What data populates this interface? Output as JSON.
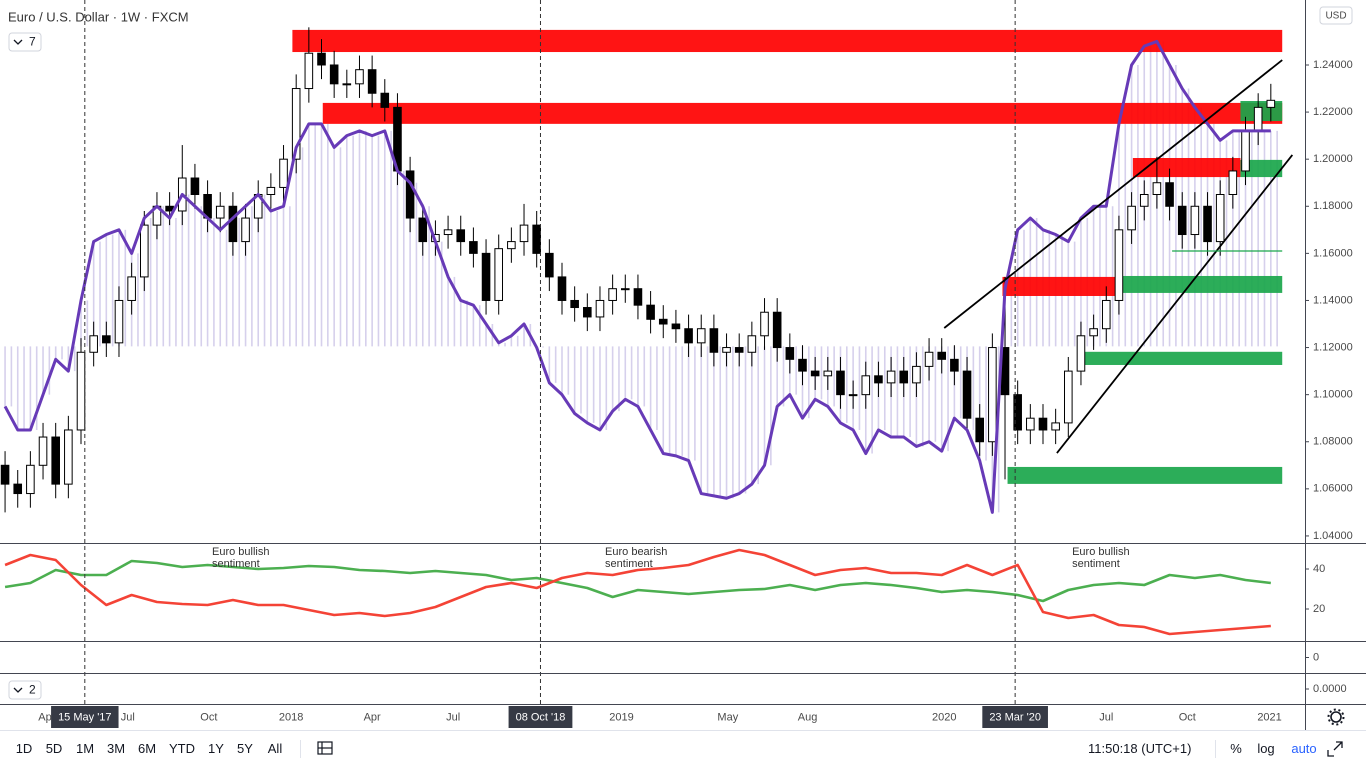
{
  "title": "Euro / U.S. Dollar · 1W · FXCM",
  "currency_button": "USD",
  "collapse_buttons": [
    "7",
    "2"
  ],
  "toolbar": {
    "ranges": [
      "1D",
      "5D",
      "1M",
      "3M",
      "6M",
      "YTD",
      "1Y",
      "5Y",
      "All"
    ],
    "clock": "11:50:18 (UTC+1)",
    "options": [
      "%",
      "log",
      "auto"
    ]
  },
  "chart_data": {
    "type": "candlestick",
    "xlim": [
      -0.4,
      102.7
    ],
    "xticks": [
      {
        "value": 3.3,
        "label": "Apr"
      },
      {
        "value": 9.7,
        "label": "Jul"
      },
      {
        "value": 16.1,
        "label": "Oct"
      },
      {
        "value": 22.6,
        "label": "2018"
      },
      {
        "value": 29,
        "label": "Apr"
      },
      {
        "value": 35.4,
        "label": "Jul"
      },
      {
        "value": 48.7,
        "label": "2019"
      },
      {
        "value": 57.1,
        "label": "May"
      },
      {
        "value": 63.4,
        "label": "Aug"
      },
      {
        "value": 74.2,
        "label": "2020"
      },
      {
        "value": 87,
        "label": "Jul"
      },
      {
        "value": 93.4,
        "label": "Oct"
      },
      {
        "value": 99.9,
        "label": "2021"
      }
    ],
    "markers": [
      {
        "value": 6.3,
        "label": "15 May '17"
      },
      {
        "value": 42.3,
        "label": "08 Oct '18"
      },
      {
        "value": 79.8,
        "label": "23 Mar '20"
      }
    ],
    "ylim": [
      1.037,
      1.2676
    ],
    "yticks": [
      {
        "value": 1.04,
        "label": "1.04000"
      },
      {
        "value": 1.06,
        "label": "1.06000"
      },
      {
        "value": 1.08,
        "label": "1.08000"
      },
      {
        "value": 1.1,
        "label": "1.10000"
      },
      {
        "value": 1.12,
        "label": "1.12000"
      },
      {
        "value": 1.14,
        "label": "1.14000"
      },
      {
        "value": 1.16,
        "label": "1.16000"
      },
      {
        "value": 1.18,
        "label": "1.18000"
      },
      {
        "value": 1.2,
        "label": "1.20000"
      },
      {
        "value": 1.22,
        "label": "1.22000"
      },
      {
        "value": 1.24,
        "label": "1.24000"
      }
    ],
    "up_color": "#ffffff",
    "down_color": "#000000",
    "open": [
      1.07,
      1.062,
      1.058,
      1.07,
      1.082,
      1.062,
      1.085,
      1.118,
      1.125,
      1.122,
      1.14,
      1.15,
      1.172,
      1.18,
      1.178,
      1.192,
      1.185,
      1.175,
      1.18,
      1.165,
      1.175,
      1.185,
      1.188,
      1.2,
      1.23,
      1.245,
      1.24,
      1.232,
      1.232,
      1.238,
      1.228,
      1.222,
      1.195,
      1.175,
      1.165,
      1.168,
      1.17,
      1.165,
      1.16,
      1.14,
      1.162,
      1.165,
      1.172,
      1.16,
      1.15,
      1.14,
      1.137,
      1.133,
      1.14,
      1.145,
      1.145,
      1.138,
      1.132,
      1.13,
      1.128,
      1.122,
      1.128,
      1.118,
      1.12,
      1.118,
      1.125,
      1.135,
      1.12,
      1.115,
      1.11,
      1.108,
      1.11,
      1.1,
      1.1,
      1.108,
      1.105,
      1.11,
      1.105,
      1.112,
      1.118,
      1.115,
      1.11,
      1.09,
      1.08,
      1.12,
      1.1,
      1.085,
      1.09,
      1.085,
      1.088,
      1.11,
      1.125,
      1.128,
      1.14,
      1.17,
      1.18,
      1.185,
      1.19,
      1.18,
      1.168,
      1.18,
      1.165,
      1.185,
      1.195,
      1.212,
      1.222
    ],
    "high": [
      1.076,
      1.068,
      1.076,
      1.088,
      1.088,
      1.091,
      1.124,
      1.131,
      1.131,
      1.146,
      1.156,
      1.178,
      1.186,
      1.186,
      1.206,
      1.198,
      1.191,
      1.186,
      1.186,
      1.181,
      1.191,
      1.194,
      1.206,
      1.236,
      1.256,
      1.251,
      1.246,
      1.238,
      1.244,
      1.244,
      1.234,
      1.228,
      1.201,
      1.181,
      1.174,
      1.176,
      1.176,
      1.171,
      1.166,
      1.168,
      1.171,
      1.181,
      1.178,
      1.166,
      1.156,
      1.146,
      1.143,
      1.146,
      1.151,
      1.151,
      1.151,
      1.144,
      1.138,
      1.136,
      1.134,
      1.134,
      1.134,
      1.126,
      1.126,
      1.131,
      1.141,
      1.141,
      1.126,
      1.121,
      1.116,
      1.116,
      1.116,
      1.106,
      1.114,
      1.114,
      1.116,
      1.116,
      1.118,
      1.124,
      1.124,
      1.121,
      1.116,
      1.096,
      1.126,
      1.15,
      1.106,
      1.096,
      1.096,
      1.094,
      1.116,
      1.131,
      1.134,
      1.146,
      1.176,
      1.186,
      1.191,
      1.201,
      1.196,
      1.186,
      1.186,
      1.186,
      1.191,
      1.201,
      1.218,
      1.228,
      1.232
    ],
    "low": [
      1.05,
      1.052,
      1.052,
      1.064,
      1.056,
      1.056,
      1.079,
      1.112,
      1.116,
      1.116,
      1.134,
      1.144,
      1.166,
      1.172,
      1.172,
      1.179,
      1.169,
      1.169,
      1.159,
      1.159,
      1.169,
      1.179,
      1.182,
      1.194,
      1.224,
      1.234,
      1.226,
      1.226,
      1.226,
      1.222,
      1.216,
      1.189,
      1.169,
      1.159,
      1.159,
      1.162,
      1.159,
      1.154,
      1.134,
      1.134,
      1.156,
      1.159,
      1.154,
      1.144,
      1.134,
      1.131,
      1.127,
      1.127,
      1.134,
      1.139,
      1.132,
      1.126,
      1.124,
      1.122,
      1.116,
      1.116,
      1.112,
      1.112,
      1.112,
      1.112,
      1.119,
      1.114,
      1.109,
      1.104,
      1.102,
      1.102,
      1.094,
      1.094,
      1.094,
      1.099,
      1.099,
      1.099,
      1.099,
      1.106,
      1.109,
      1.104,
      1.084,
      1.074,
      1.074,
      1.064,
      1.079,
      1.079,
      1.079,
      1.079,
      1.082,
      1.104,
      1.119,
      1.122,
      1.134,
      1.164,
      1.174,
      1.179,
      1.174,
      1.162,
      1.162,
      1.159,
      1.159,
      1.179,
      1.189,
      1.206,
      1.216
    ],
    "close": [
      1.062,
      1.058,
      1.07,
      1.082,
      1.062,
      1.085,
      1.118,
      1.125,
      1.122,
      1.14,
      1.15,
      1.172,
      1.18,
      1.178,
      1.192,
      1.185,
      1.175,
      1.18,
      1.165,
      1.175,
      1.185,
      1.188,
      1.2,
      1.23,
      1.245,
      1.24,
      1.232,
      1.232,
      1.238,
      1.228,
      1.222,
      1.195,
      1.175,
      1.165,
      1.168,
      1.17,
      1.165,
      1.16,
      1.14,
      1.162,
      1.165,
      1.172,
      1.16,
      1.15,
      1.14,
      1.137,
      1.133,
      1.14,
      1.145,
      1.145,
      1.138,
      1.132,
      1.13,
      1.128,
      1.122,
      1.128,
      1.118,
      1.12,
      1.118,
      1.125,
      1.135,
      1.12,
      1.115,
      1.11,
      1.108,
      1.11,
      1.1,
      1.1,
      1.108,
      1.105,
      1.11,
      1.105,
      1.112,
      1.118,
      1.115,
      1.11,
      1.09,
      1.08,
      1.12,
      1.1,
      1.085,
      1.09,
      1.085,
      1.088,
      1.11,
      1.125,
      1.128,
      1.14,
      1.17,
      1.18,
      1.185,
      1.19,
      1.18,
      1.168,
      1.18,
      1.165,
      1.185,
      1.195,
      1.212,
      1.222,
      1.225
    ],
    "overlay": {
      "color": "#673ab7",
      "fill_color": "#d6d0ec",
      "baseline": 1.1205,
      "values": [
        1.095,
        1.085,
        1.085,
        1.1,
        1.115,
        1.11,
        1.14,
        1.165,
        1.168,
        1.17,
        1.16,
        1.175,
        1.18,
        1.175,
        1.185,
        1.18,
        1.175,
        1.17,
        1.175,
        1.18,
        1.185,
        1.178,
        1.18,
        1.205,
        1.215,
        1.215,
        1.205,
        1.21,
        1.212,
        1.21,
        1.212,
        1.195,
        1.19,
        1.18,
        1.165,
        1.15,
        1.14,
        1.138,
        1.13,
        1.122,
        1.125,
        1.13,
        1.12,
        1.105,
        1.1,
        1.092,
        1.088,
        1.085,
        1.093,
        1.098,
        1.095,
        1.085,
        1.075,
        1.074,
        1.072,
        1.058,
        1.057,
        1.056,
        1.058,
        1.062,
        1.07,
        1.095,
        1.1,
        1.09,
        1.098,
        1.095,
        1.088,
        1.085,
        1.075,
        1.085,
        1.082,
        1.082,
        1.078,
        1.08,
        1.076,
        1.09,
        1.085,
        1.072,
        1.05,
        1.145,
        1.17,
        1.175,
        1.17,
        1.168,
        1.165,
        1.175,
        1.18,
        1.18,
        1.215,
        1.24,
        1.248,
        1.25,
        1.24,
        1.23,
        1.222,
        1.215,
        1.208,
        1.212,
        1.212,
        1.212,
        1.212
      ]
    },
    "zones": [
      {
        "color": "#ff0000",
        "range": [
          1.2455,
          1.2549
        ],
        "x": [
          22.7,
          100.9
        ]
      },
      {
        "color": "#ff0000",
        "range": [
          1.215,
          1.2239
        ],
        "x": [
          25.1,
          100.9
        ]
      },
      {
        "color": "#ff0000",
        "range": [
          1.1924,
          1.2005
        ],
        "x": [
          89.1,
          97.6
        ]
      },
      {
        "color": "#ff0000",
        "range": [
          1.1419,
          1.15
        ],
        "x": [
          78.8,
          87.9
        ]
      },
      {
        "color": "#1aa64b",
        "range": [
          1.2162,
          1.2247
        ],
        "x": [
          97.6,
          100.9
        ]
      },
      {
        "color": "#1aa64b",
        "range": [
          1.1924,
          1.1997
        ],
        "x": [
          97.6,
          100.9
        ]
      },
      {
        "color": "#1aa64b",
        "range": [
          1.1432,
          1.1504
        ],
        "x": [
          88.1,
          100.9
        ]
      },
      {
        "color": "#1aa64b",
        "range": [
          1.1126,
          1.1182
        ],
        "x": [
          85.3,
          100.9
        ]
      },
      {
        "color": "#1aa64b",
        "range": [
          1.0621,
          1.0693
        ],
        "x": [
          79.2,
          100.9
        ]
      }
    ],
    "lines": [
      {
        "color": "#000000",
        "x": [
          74.2,
          100.9
        ],
        "y": [
          1.1283,
          1.2421
        ]
      },
      {
        "color": "#000000",
        "x": [
          83.1,
          101.7
        ],
        "y": [
          1.0752,
          1.2018
        ]
      },
      {
        "color": "#1aa64b",
        "x": [
          92.2,
          100.9
        ],
        "y": [
          1.161,
          1.161
        ]
      }
    ],
    "sentiment": {
      "ylim": [
        4.5,
        52
      ],
      "yticks": [
        20,
        40
      ],
      "x": [
        0,
        2,
        4,
        6,
        8,
        10,
        12,
        14,
        16,
        18,
        20,
        22,
        24,
        26,
        28,
        30,
        32,
        34,
        36,
        38,
        40,
        42,
        44,
        46,
        48,
        50,
        52,
        54,
        56,
        58,
        60,
        62,
        64,
        66,
        68,
        70,
        72,
        74,
        76,
        78,
        80,
        82,
        84,
        86,
        88,
        90,
        92,
        94,
        96,
        98,
        100
      ],
      "series": [
        {
          "color": "#4caf50",
          "values": [
            31,
            33,
            39.5,
            37,
            37,
            44,
            43,
            41,
            42,
            41,
            40,
            40.5,
            41.5,
            41,
            39.5,
            39,
            38,
            39,
            38,
            37,
            34.5,
            35.5,
            33,
            30.5,
            26,
            29.5,
            28.5,
            27.5,
            28.5,
            29.5,
            30,
            32,
            29.5,
            32,
            33,
            32,
            30.5,
            28.5,
            29.5,
            28.5,
            27,
            24,
            29.5,
            32,
            33,
            32,
            37,
            35.5,
            37,
            34.5,
            33
          ]
        },
        {
          "color": "#f44336",
          "values": [
            42,
            47,
            44.5,
            32,
            22,
            27,
            23.5,
            22.5,
            22,
            24.5,
            22,
            22,
            19.5,
            17,
            18,
            16.5,
            18,
            21,
            26,
            31,
            33,
            30.5,
            35.5,
            38,
            37,
            39.5,
            40.5,
            42,
            46,
            49.5,
            47,
            42,
            37,
            39.5,
            40.5,
            38,
            38,
            37,
            42,
            37,
            42,
            18.5,
            15.5,
            17,
            12,
            11,
            7.5,
            8.5,
            9.5,
            10.5,
            11.5
          ]
        }
      ],
      "annotations": [
        {
          "x": 16.35,
          "lines": [
            "Euro bullish",
            "sentiment"
          ]
        },
        {
          "x": 47.4,
          "lines": [
            "Euro bearish",
            "sentiment"
          ]
        },
        {
          "x": 84.3,
          "lines": [
            "Euro bullish",
            "sentiment"
          ]
        }
      ]
    },
    "extra_panes": [
      {
        "ylim": [
          -1,
          1
        ],
        "yticks": [
          0
        ]
      },
      {
        "ylim": [
          -1,
          1
        ],
        "yticks": [
          {
            "value": 0,
            "label": "0.0000"
          }
        ]
      }
    ]
  }
}
